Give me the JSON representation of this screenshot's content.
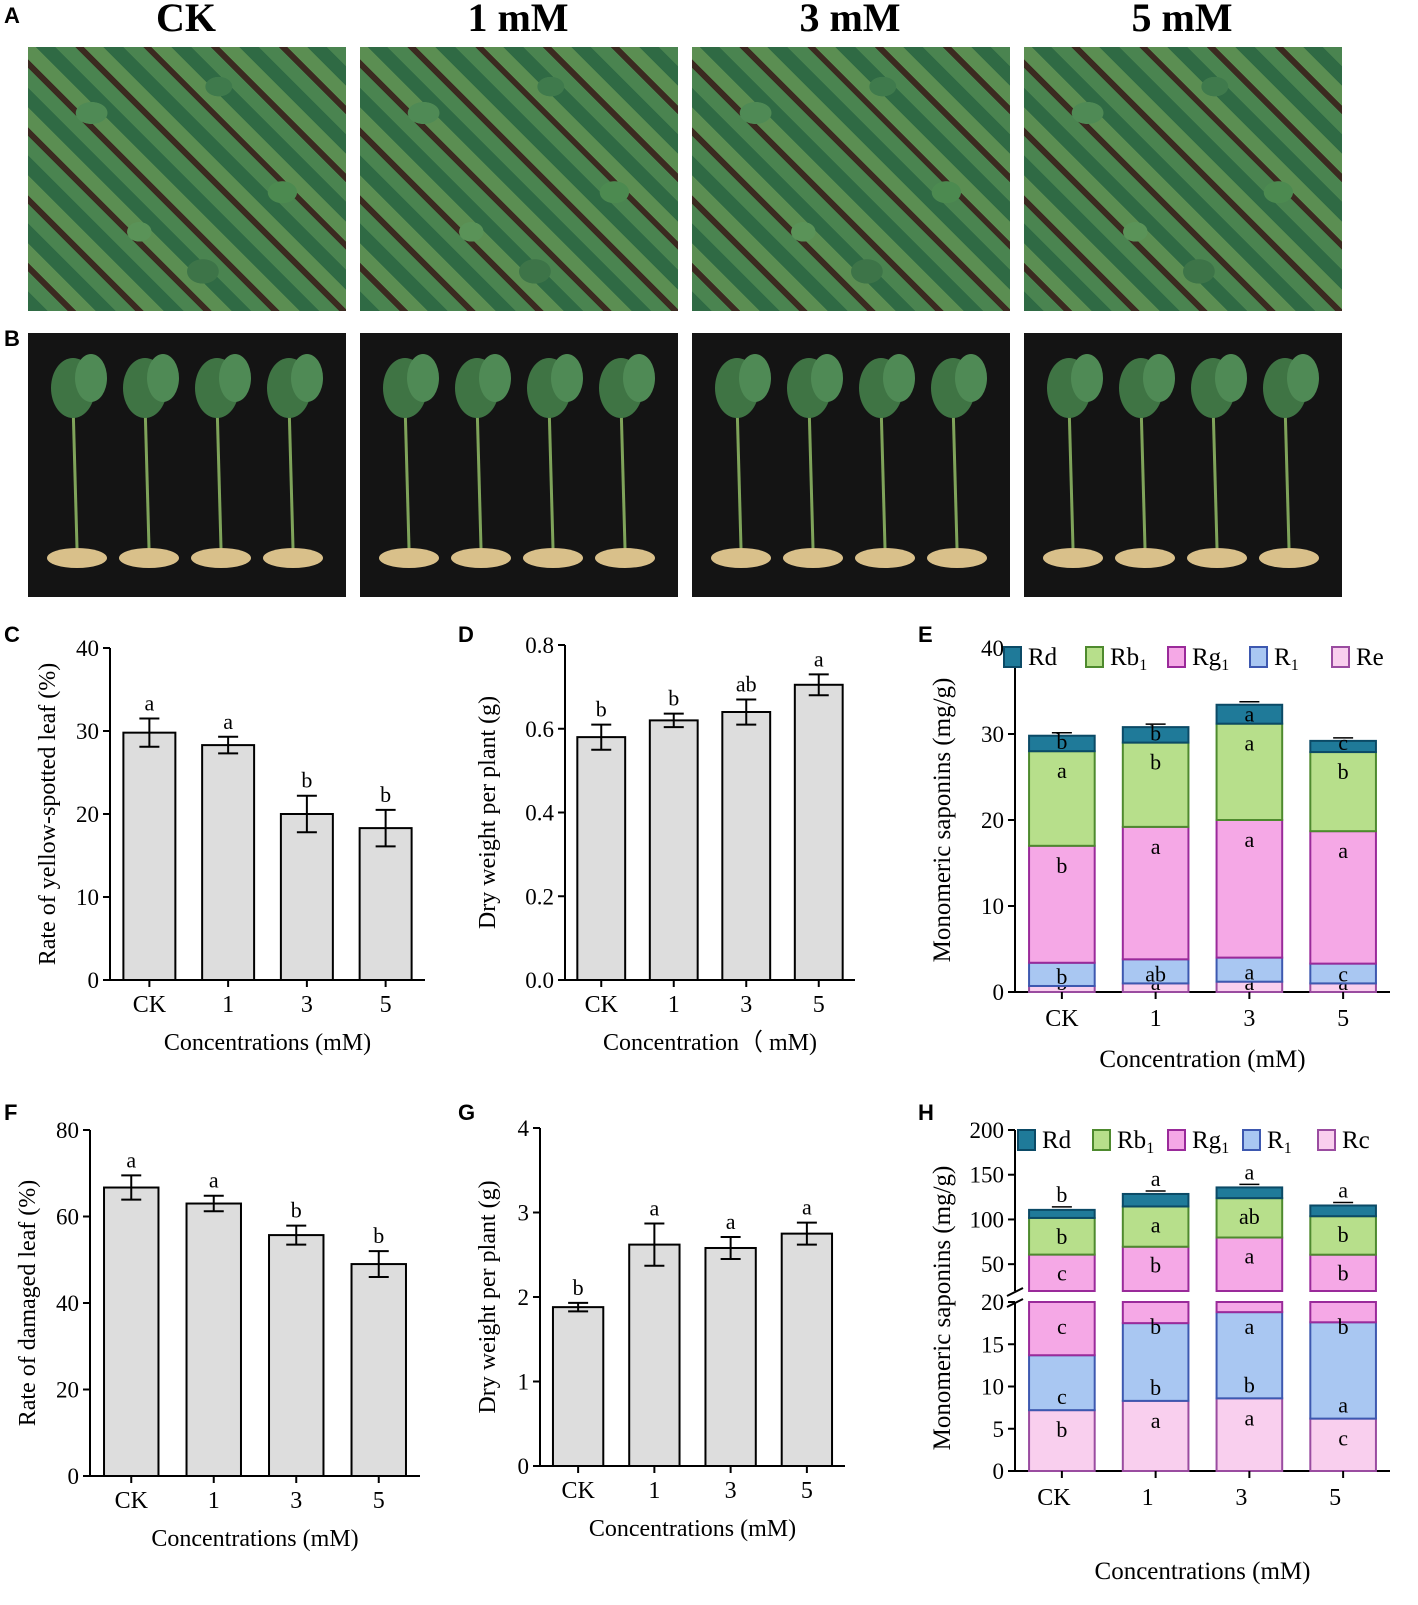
{
  "panel_letters": {
    "A": "A",
    "B": "B",
    "C": "C",
    "D": "D",
    "E": "E",
    "F": "F",
    "G": "G",
    "H": "H"
  },
  "column_headers": [
    "CK",
    "1 mM",
    "3 mM",
    "5 mM"
  ],
  "chart_data": [
    {
      "id": "C",
      "type": "bar",
      "ylabel": "Rate of yellow-spotted leaf  (%)",
      "xlabel": "Concentrations (mM)",
      "categories": [
        "CK",
        "1",
        "3",
        "5"
      ],
      "values": [
        29.8,
        28.3,
        20.0,
        18.3
      ],
      "errors": [
        1.7,
        1.0,
        2.2,
        2.2
      ],
      "letters": [
        "a",
        "a",
        "b",
        "b"
      ],
      "ylim": [
        0,
        40
      ],
      "yticks": [
        "0",
        "10",
        "20",
        "30",
        "40"
      ],
      "bar_color": "#dddddd"
    },
    {
      "id": "D",
      "type": "bar",
      "ylabel": "Dry weight per plant (g)",
      "xlabel": "Concentration（ mM)",
      "categories": [
        "CK",
        "1",
        "3",
        "5"
      ],
      "values": [
        0.58,
        0.62,
        0.64,
        0.705
      ],
      "errors": [
        0.03,
        0.016,
        0.03,
        0.025
      ],
      "letters": [
        "b",
        "b",
        "ab",
        "a"
      ],
      "ylim": [
        0,
        0.8
      ],
      "yticks": [
        "0.0",
        "0.2",
        "0.4",
        "0.6",
        "0.8"
      ],
      "bar_color": "#dddddd"
    },
    {
      "id": "E",
      "type": "stacked-bar",
      "ylabel": "Monomeric saponins (mg/g)",
      "xlabel": "Concentration (mM)",
      "categories": [
        "CK",
        "1",
        "3",
        "5"
      ],
      "ylim": [
        0,
        40
      ],
      "yticks": [
        "0",
        "10",
        "20",
        "30",
        "40"
      ],
      "legend_position": "top",
      "series": [
        {
          "name": "Re",
          "color": "#f9cfee",
          "stroke": "#9a4ca0",
          "values": [
            0.7,
            1.0,
            1.2,
            1.0
          ],
          "letters": [
            "b",
            "a",
            "a",
            "a"
          ]
        },
        {
          "name": "R1",
          "color": "#a9c7f2",
          "stroke": "#3d58b0",
          "values": [
            2.7,
            2.8,
            2.8,
            2.3
          ],
          "letters": [
            "b",
            "ab",
            "a",
            "c"
          ]
        },
        {
          "name": "Rg1",
          "color": "#f5a8e6",
          "stroke": "#9a2a9a",
          "values": [
            13.6,
            15.4,
            16.0,
            15.4
          ],
          "letters": [
            "b",
            "a",
            "a",
            "a"
          ]
        },
        {
          "name": "Rb1",
          "color": "#b7df8b",
          "stroke": "#4e8a2e",
          "values": [
            11.0,
            9.8,
            11.2,
            9.2
          ],
          "letters": [
            "a",
            "b",
            "a",
            "b"
          ]
        },
        {
          "name": "Rd",
          "color": "#1f7a99",
          "stroke": "#0b4a66",
          "values": [
            1.8,
            1.8,
            2.2,
            1.3
          ],
          "letters": [
            "b",
            "b",
            "a",
            "c"
          ]
        }
      ],
      "legend": [
        {
          "label": "Rd",
          "sub": ""
        },
        {
          "label": "Rb",
          "sub": "1"
        },
        {
          "label": "Rg",
          "sub": "1"
        },
        {
          "label": "R",
          "sub": "1"
        },
        {
          "label": "Re",
          "sub": ""
        }
      ]
    },
    {
      "id": "F",
      "type": "bar",
      "ylabel": "Rate of damaged leaf  (%)",
      "xlabel": "Concentrations (mM)",
      "categories": [
        "CK",
        "1",
        "3",
        "5"
      ],
      "values": [
        66.7,
        63.0,
        55.7,
        49.0
      ],
      "errors": [
        2.8,
        1.8,
        2.2,
        3.0
      ],
      "letters": [
        "a",
        "a",
        "b",
        "b"
      ],
      "ylim": [
        0,
        80
      ],
      "yticks": [
        "0",
        "20",
        "40",
        "60",
        "80"
      ],
      "bar_color": "#dddddd"
    },
    {
      "id": "G",
      "type": "bar",
      "ylabel": "Dry weight per plant (g)",
      "xlabel": "Concentrations (mM)",
      "categories": [
        "CK",
        "1",
        "3",
        "5"
      ],
      "values": [
        1.88,
        2.62,
        2.58,
        2.75
      ],
      "errors": [
        0.05,
        0.25,
        0.13,
        0.13
      ],
      "letters": [
        "b",
        "a",
        "a",
        "a"
      ],
      "ylim": [
        0,
        4
      ],
      "yticks": [
        "0",
        "1",
        "2",
        "3",
        "4"
      ],
      "bar_color": "#dddddd"
    },
    {
      "id": "H",
      "type": "stacked-bar-broken",
      "ylabel": "Monomeric saponins (mg/g)",
      "xlabel": "Concentrations (mM)",
      "categories": [
        "CK",
        "1",
        "3",
        "5"
      ],
      "lower_ylim": [
        0,
        20
      ],
      "lower_yticks": [
        "0",
        "5",
        "10",
        "15",
        "20"
      ],
      "upper_ylim": [
        20,
        200
      ],
      "upper_yticks": [
        "50",
        "100",
        "150",
        "200"
      ],
      "legend_position": "top",
      "series": [
        {
          "name": "Rc",
          "color": "#f9cfee",
          "stroke": "#9a4ca0",
          "values": [
            7.2,
            8.3,
            8.6,
            6.2
          ],
          "letters": [
            "b",
            "a",
            "a",
            "c"
          ]
        },
        {
          "name": "R1",
          "color": "#a9c7f2",
          "stroke": "#3d58b0",
          "values": [
            6.5,
            9.2,
            10.2,
            11.4
          ],
          "letters": [
            "c",
            "b",
            "b",
            "a"
          ]
        },
        {
          "name": "Rg1",
          "color": "#f5a8e6",
          "stroke": "#9a2a9a",
          "values": [
            47,
            52,
            61,
            43
          ],
          "letters": [
            "c",
            "b",
            "a",
            "b"
          ]
        },
        {
          "name": "Rb1",
          "color": "#b7df8b",
          "stroke": "#4e8a2e",
          "values": [
            41,
            45,
            44,
            43
          ],
          "letters": [
            "b",
            "a",
            "ab",
            "b"
          ]
        },
        {
          "name": "Rd",
          "color": "#1f7a99",
          "stroke": "#0b4a66",
          "values": [
            9,
            14,
            12,
            12
          ],
          "letters": [
            "b",
            "a",
            "a",
            "a"
          ]
        }
      ],
      "legend": [
        {
          "label": "Rd",
          "sub": ""
        },
        {
          "label": "Rb",
          "sub": "1"
        },
        {
          "label": "Rg",
          "sub": "1"
        },
        {
          "label": "R",
          "sub": "1"
        },
        {
          "label": "Rc",
          "sub": ""
        }
      ]
    }
  ]
}
